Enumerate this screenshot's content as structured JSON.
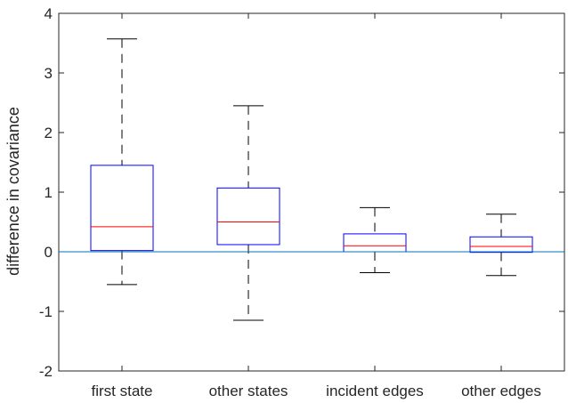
{
  "chart_data": {
    "type": "boxplot",
    "title": "",
    "xlabel": "",
    "ylabel": "difference in covariance",
    "ylim": [
      -2,
      4
    ],
    "yticks": [
      -2,
      -1,
      0,
      1,
      2,
      3,
      4
    ],
    "ytick_labels": [
      "-2",
      "-1",
      "0",
      "1",
      "2",
      "3",
      "4"
    ],
    "categories": [
      "first state",
      "other states",
      "incident edges",
      "other edges"
    ],
    "boxes": [
      {
        "whisker_low": -0.55,
        "q1": 0.02,
        "median": 0.42,
        "q3": 1.45,
        "whisker_high": 3.57
      },
      {
        "whisker_low": -1.15,
        "q1": 0.12,
        "median": 0.5,
        "q3": 1.07,
        "whisker_high": 2.45
      },
      {
        "whisker_low": -0.35,
        "q1": 0.0,
        "median": 0.1,
        "q3": 0.3,
        "whisker_high": 0.74
      },
      {
        "whisker_low": -0.4,
        "q1": -0.01,
        "median": 0.09,
        "q3": 0.25,
        "whisker_high": 0.63
      }
    ],
    "reference_line": {
      "y": 0
    },
    "grid": false,
    "colors": {
      "box": "#0000ff",
      "median": "#ff0000",
      "whisker": "#000000",
      "reference_line": "#0072bd",
      "axes": "#262626"
    }
  }
}
